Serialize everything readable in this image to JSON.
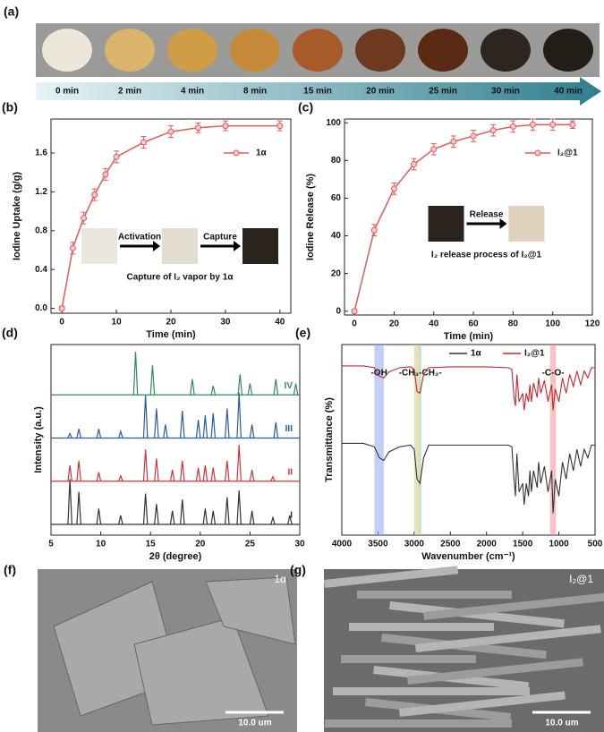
{
  "photo_strip": {
    "panel": "(a)",
    "times": [
      "0 min",
      "2 min",
      "4 min",
      "8 min",
      "15 min",
      "20 min",
      "25 min",
      "30 min",
      "40 min"
    ]
  },
  "chart_data": [
    {
      "type": "line",
      "panel": "(b)",
      "xlabel": "Time (min)",
      "ylabel": "Iodine Uptake (g/g)",
      "xlim": [
        -2,
        42
      ],
      "xticks": [
        0,
        10,
        20,
        30,
        40
      ],
      "ylim": [
        -0.05,
        1.95
      ],
      "yticks": [
        {
          "value": 0,
          "label": "0.0"
        },
        0.4,
        0.8,
        1.2,
        1.6
      ],
      "x": [
        0,
        2,
        4,
        6,
        8,
        10,
        15,
        20,
        25,
        30,
        40
      ],
      "series": [
        {
          "name": "1α",
          "color": "#e05a5a",
          "values": [
            0,
            0.62,
            0.93,
            1.17,
            1.38,
            1.56,
            1.71,
            1.82,
            1.86,
            1.88,
            1.88
          ],
          "errors": [
            0.02,
            0.06,
            0.06,
            0.06,
            0.06,
            0.06,
            0.06,
            0.06,
            0.05,
            0.05,
            0.05
          ]
        }
      ],
      "inset": {
        "steps": [
          "Activation",
          "Capture"
        ],
        "caption": "Capture of I₂ vapor by 1α"
      }
    },
    {
      "type": "line",
      "panel": "(c)",
      "xlabel": "Time (min)",
      "ylabel": "Iodine Release (%)",
      "xlim": [
        -5,
        120
      ],
      "xticks": [
        0,
        20,
        40,
        60,
        80,
        100,
        120
      ],
      "ylim": [
        -2,
        102
      ],
      "yticks": [
        0,
        20,
        40,
        60,
        80,
        100
      ],
      "x": [
        0,
        10,
        20,
        30,
        40,
        50,
        60,
        70,
        80,
        90,
        100,
        110
      ],
      "series": [
        {
          "name": "I₂@1",
          "color": "#e05a5a",
          "values": [
            0,
            43,
            65,
            78,
            86,
            90,
            93,
            96,
            98,
            99,
            99,
            99
          ],
          "errors": [
            1,
            3,
            3,
            3,
            3,
            3,
            3,
            3,
            3,
            3,
            3,
            2
          ]
        }
      ],
      "inset": {
        "steps": [
          "Release"
        ],
        "caption": "I₂ release process of I₂@1"
      }
    },
    {
      "type": "peaks",
      "panel": "(d)",
      "xlabel": "2θ (degree)",
      "ylabel": "Intensity (a.u.)",
      "xlim": [
        5,
        30
      ],
      "xticks": [
        5,
        10,
        15,
        20,
        25,
        30
      ],
      "series": [
        {
          "name": "I",
          "color": "#333333",
          "x": [
            6.9,
            7.8,
            9.8,
            12.0,
            14.5,
            15.6,
            17.2,
            18.2,
            20.5,
            21.3,
            22.7,
            23.9,
            25.2,
            27.3,
            29.0
          ],
          "values": [
            1.0,
            0.72,
            0.35,
            0.2,
            0.68,
            0.45,
            0.3,
            0.55,
            0.35,
            0.3,
            0.6,
            0.75,
            0.3,
            0.15,
            0.2
          ]
        },
        {
          "name": "II",
          "color": "#d0343a",
          "x": [
            6.9,
            7.8,
            9.8,
            12.0,
            14.5,
            15.6,
            17.2,
            18.2,
            19.8,
            20.5,
            21.3,
            22.7,
            23.9,
            25.2,
            27.3
          ],
          "values": [
            0.35,
            0.45,
            0.2,
            0.12,
            0.7,
            0.5,
            0.25,
            0.45,
            0.3,
            0.35,
            0.3,
            0.45,
            0.8,
            0.25,
            0.1
          ]
        },
        {
          "name": "III",
          "color": "#2a5c9a",
          "x": [
            6.9,
            7.8,
            9.8,
            12.0,
            14.5,
            15.6,
            16.5,
            18.2,
            19.8,
            20.5,
            21.3,
            22.7,
            23.9,
            25.2,
            27.6
          ],
          "values": [
            0.1,
            0.2,
            0.2,
            0.15,
            0.95,
            0.65,
            0.3,
            0.6,
            0.4,
            0.5,
            0.55,
            0.65,
            1.0,
            0.3,
            0.35
          ]
        },
        {
          "name": "IV",
          "color": "#2e8b57",
          "x": [
            13.5,
            15.2,
            19.2,
            21.3,
            24.0,
            25.0,
            27.6,
            29.6
          ],
          "values": [
            0.95,
            0.65,
            0.35,
            0.2,
            0.45,
            0.25,
            0.35,
            0.25
          ]
        }
      ]
    },
    {
      "type": "spectra",
      "panel": "(e)",
      "xlabel": "Wavenumber (cm⁻¹)",
      "ylabel": "Transmittance (%)",
      "xlim": [
        4000,
        500
      ],
      "xticks": [
        4000,
        3500,
        3000,
        2500,
        2000,
        1500,
        1000,
        500
      ],
      "highlights": [
        {
          "label": "-OH",
          "range": [
            3550,
            3420
          ],
          "color": "#8fa8f0"
        },
        {
          "label": "-CH₃",
          "range": [
            3000,
            2950
          ],
          "color": "#e8c27a"
        },
        {
          "label": "-CH₂-",
          "range": [
            2950,
            2900
          ],
          "color": "#9ccf8a"
        },
        {
          "label": "-C-O-",
          "range": [
            1120,
            1040
          ],
          "color": "#f08f8f"
        }
      ],
      "x": [
        4000,
        3700,
        3550,
        3480,
        3420,
        3350,
        3200,
        3050,
        3000,
        2960,
        2920,
        2870,
        2800,
        2500,
        2000,
        1700,
        1650,
        1620,
        1600,
        1580,
        1550,
        1500,
        1480,
        1450,
        1420,
        1400,
        1380,
        1350,
        1300,
        1280,
        1250,
        1200,
        1150,
        1100,
        1080,
        1050,
        1000,
        950,
        900,
        850,
        800,
        750,
        700,
        650,
        600,
        550,
        500
      ],
      "series": [
        {
          "name": "1α",
          "color": "#333333",
          "values": [
            0.92,
            0.92,
            0.88,
            0.75,
            0.72,
            0.82,
            0.88,
            0.9,
            0.85,
            0.5,
            0.45,
            0.75,
            0.9,
            0.9,
            0.9,
            0.9,
            0.88,
            0.5,
            0.3,
            0.8,
            0.35,
            0.45,
            0.2,
            0.45,
            0.3,
            0.6,
            0.35,
            0.6,
            0.4,
            0.7,
            0.45,
            0.65,
            0.35,
            0.6,
            0.1,
            0.5,
            0.3,
            0.7,
            0.5,
            0.8,
            0.6,
            0.85,
            0.65,
            0.85,
            0.75,
            0.9,
            0.9
          ]
        },
        {
          "name": "I₂@1",
          "color": "#c0282e",
          "values": [
            0.92,
            0.92,
            0.9,
            0.8,
            0.78,
            0.85,
            0.9,
            0.91,
            0.88,
            0.62,
            0.6,
            0.82,
            0.9,
            0.91,
            0.91,
            0.9,
            0.88,
            0.55,
            0.45,
            0.82,
            0.5,
            0.6,
            0.4,
            0.6,
            0.5,
            0.7,
            0.5,
            0.72,
            0.55,
            0.78,
            0.6,
            0.75,
            0.5,
            0.7,
            0.4,
            0.65,
            0.5,
            0.78,
            0.6,
            0.82,
            0.68,
            0.86,
            0.7,
            0.86,
            0.78,
            0.9,
            0.9
          ]
        }
      ]
    }
  ],
  "micrographs": [
    {
      "panel": "(f)",
      "label": "1α",
      "scale_bar": "10.0 um"
    },
    {
      "panel": "(g)",
      "label": "I₂@1",
      "scale_bar": "10.0 um"
    }
  ]
}
